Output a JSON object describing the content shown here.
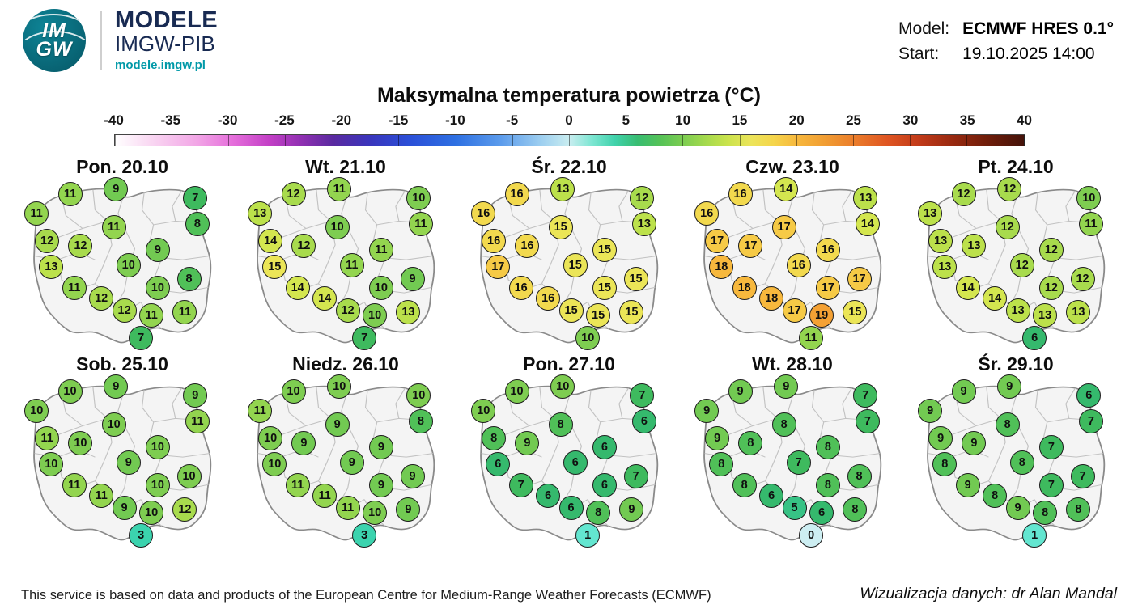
{
  "header": {
    "logo": {
      "line1": "IM",
      "line2": "GW"
    },
    "brand": {
      "title": "MODELE",
      "subtitle": "IMGW-PIB",
      "url": "modele.imgw.pl"
    },
    "model": {
      "label": "Model:",
      "value": "ECMWF HRES 0.1°"
    },
    "start": {
      "label": "Start:",
      "value": "19.10.2025 14:00"
    }
  },
  "title": "Maksymalna temperatura powietrza (°C)",
  "colorbar": {
    "ticks": [
      "-40",
      "-35",
      "-30",
      "-25",
      "-20",
      "-15",
      "-10",
      "-5",
      "0",
      "5",
      "10",
      "15",
      "20",
      "25",
      "30",
      "35",
      "40"
    ]
  },
  "chart_data": {
    "type": "map-grid",
    "unit": "°C",
    "description": "Daily maximum air temperature forecast values plotted on maps of Poland",
    "point_positions": [
      {
        "id": "p1",
        "x": 25,
        "y": 9
      },
      {
        "id": "p2",
        "x": 47,
        "y": 6
      },
      {
        "id": "p3",
        "x": 85,
        "y": 11
      },
      {
        "id": "p4",
        "x": 9,
        "y": 20
      },
      {
        "id": "p5",
        "x": 46,
        "y": 28
      },
      {
        "id": "p6",
        "x": 86,
        "y": 26
      },
      {
        "id": "p7",
        "x": 14,
        "y": 36
      },
      {
        "id": "p8",
        "x": 30,
        "y": 39
      },
      {
        "id": "p9",
        "x": 67,
        "y": 41
      },
      {
        "id": "p10",
        "x": 16,
        "y": 51
      },
      {
        "id": "p11",
        "x": 53,
        "y": 50
      },
      {
        "id": "p12",
        "x": 27,
        "y": 63
      },
      {
        "id": "p13",
        "x": 40,
        "y": 69
      },
      {
        "id": "p14",
        "x": 67,
        "y": 63
      },
      {
        "id": "p15",
        "x": 82,
        "y": 58
      },
      {
        "id": "p16",
        "x": 51,
        "y": 76
      },
      {
        "id": "p17",
        "x": 64,
        "y": 79
      },
      {
        "id": "p18",
        "x": 80,
        "y": 77
      },
      {
        "id": "p19",
        "x": 59,
        "y": 92
      }
    ],
    "days": [
      {
        "label": "Pon. 20.10",
        "values": [
          11,
          9,
          7,
          11,
          11,
          8,
          12,
          12,
          9,
          13,
          10,
          11,
          12,
          10,
          8,
          12,
          11,
          11,
          7
        ]
      },
      {
        "label": "Wt. 21.10",
        "values": [
          12,
          11,
          10,
          13,
          10,
          11,
          14,
          12,
          11,
          15,
          11,
          14,
          14,
          10,
          9,
          12,
          10,
          13,
          7
        ]
      },
      {
        "label": "Śr. 22.10",
        "values": [
          16,
          13,
          12,
          16,
          15,
          13,
          16,
          16,
          15,
          17,
          15,
          16,
          16,
          15,
          15,
          15,
          15,
          15,
          10
        ]
      },
      {
        "label": "Czw. 23.10",
        "values": [
          16,
          14,
          13,
          16,
          17,
          14,
          17,
          17,
          16,
          18,
          16,
          18,
          18,
          17,
          17,
          17,
          19,
          15,
          11
        ]
      },
      {
        "label": "Pt. 24.10",
        "values": [
          12,
          12,
          10,
          13,
          12,
          11,
          13,
          13,
          12,
          13,
          12,
          14,
          14,
          12,
          12,
          13,
          13,
          13,
          6
        ]
      },
      {
        "label": "Sob. 25.10",
        "values": [
          10,
          9,
          9,
          10,
          10,
          11,
          11,
          10,
          10,
          10,
          9,
          11,
          11,
          10,
          10,
          9,
          10,
          12,
          3
        ]
      },
      {
        "label": "Niedz. 26.10",
        "values": [
          10,
          10,
          10,
          11,
          9,
          8,
          10,
          9,
          9,
          10,
          9,
          11,
          11,
          9,
          9,
          11,
          10,
          9,
          3
        ]
      },
      {
        "label": "Pon. 27.10",
        "values": [
          10,
          10,
          7,
          10,
          8,
          6,
          8,
          9,
          6,
          6,
          6,
          7,
          6,
          6,
          7,
          6,
          8,
          9,
          1
        ]
      },
      {
        "label": "Wt. 28.10",
        "values": [
          9,
          9,
          7,
          9,
          8,
          7,
          9,
          8,
          8,
          8,
          7,
          8,
          6,
          8,
          8,
          5,
          6,
          8,
          0
        ]
      },
      {
        "label": "Śr. 29.10",
        "values": [
          9,
          9,
          6,
          9,
          8,
          7,
          9,
          9,
          7,
          8,
          8,
          9,
          8,
          7,
          7,
          9,
          8,
          8,
          1
        ]
      }
    ]
  },
  "colors": {
    "brand_navy": "#182a52",
    "accent_teal": "#0099a8",
    "temperature": {
      "0": "#cdeef2",
      "1": "#63e6d0",
      "3": "#3bd3ae",
      "5": "#37c285",
      "6": "#35b96d",
      "7": "#3eba5e",
      "8": "#50c058",
      "9": "#72ca52",
      "10": "#7ecd51",
      "11": "#93d54f",
      "12": "#a8db4d",
      "13": "#bce14b",
      "14": "#d4e64f",
      "15": "#ebe557",
      "16": "#f2d94e",
      "17": "#f6ca46",
      "18": "#f7b83d",
      "19": "#f4a134"
    }
  },
  "footer": {
    "attribution": "This service is based on data and products of the European Centre for Medium-Range Weather Forecasts (ECMWF)",
    "credit": "Wizualizacja danych: dr Alan Mandal"
  }
}
